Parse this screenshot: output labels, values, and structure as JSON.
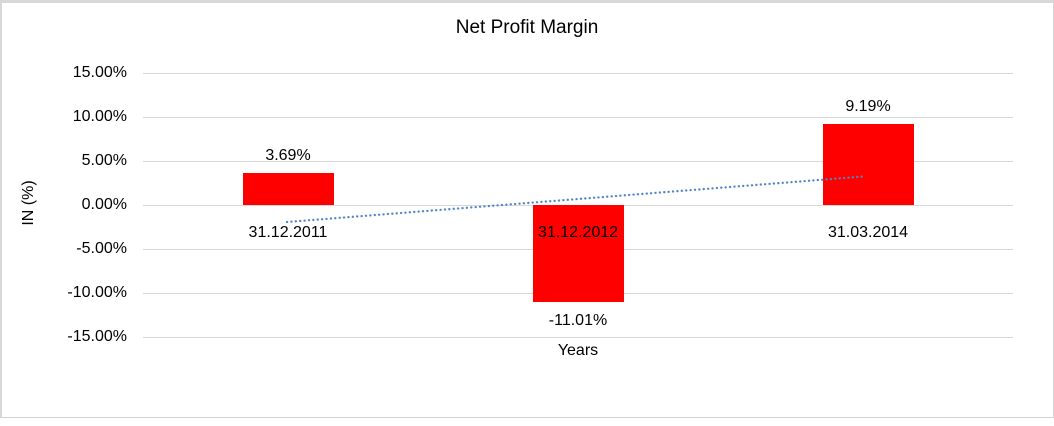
{
  "chart_data": {
    "type": "bar",
    "title": "Net Profit Margin",
    "categories": [
      "31.12.2011",
      "31.12.2012",
      "31.03.2014"
    ],
    "values": [
      3.69,
      -11.01,
      9.19
    ],
    "data_labels": [
      "3.69%",
      "-11.01%",
      "9.19%"
    ],
    "xlabel": "Years",
    "ylabel": "IN (%)",
    "ylim": [
      -15,
      15
    ],
    "y_tick_step": 5,
    "y_ticks": [
      "15.00%",
      "10.00%",
      "5.00%",
      "0.00%",
      "-5.00%",
      "-10.00%",
      "-15.00%"
    ],
    "y_tick_values": [
      15,
      10,
      5,
      0,
      -5,
      -10,
      -15
    ],
    "grid": "horizontal",
    "legend": "none",
    "bar_color": "#ff0000",
    "gridline_color": "#d9d9d9",
    "trendline": {
      "type": "linear",
      "style": "dotted",
      "color": "#4f86c8",
      "start_value_pct": -1.93,
      "end_value_pct": 3.24
    }
  }
}
